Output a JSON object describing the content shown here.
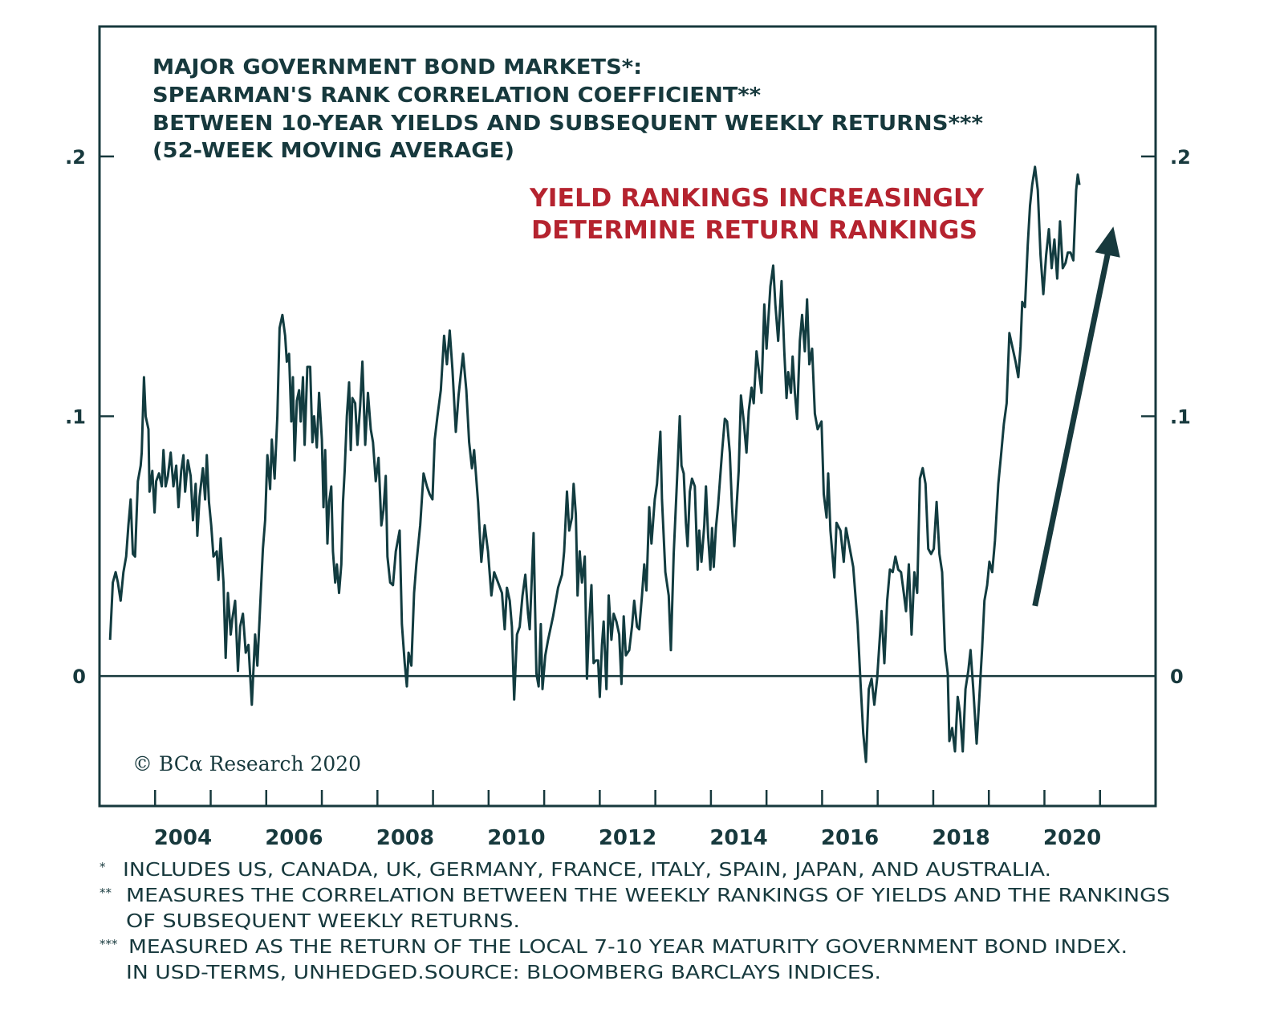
{
  "chart_data": {
    "type": "line",
    "title_lines": [
      "MAJOR GOVERNMENT BOND MARKETS*:",
      "SPEARMAN'S RANK CORRELATION COEFFICIENT**",
      "BETWEEN 10-YEAR YIELDS AND SUBSEQUENT WEEKLY RETURNS***",
      "(52-WEEK MOVING AVERAGE)"
    ],
    "annotation": {
      "lines": [
        "YIELD RANKINGS INCREASINGLY",
        "DETERMINE RETURN RANKINGS"
      ],
      "color": "#b5232f",
      "arrow": {
        "from": [
          2019.83,
          0.027
        ],
        "to": [
          2021.24,
          0.173
        ]
      }
    },
    "xlabel": "",
    "ylabel": "",
    "xlim": [
      2003,
      2022
    ],
    "ylim": [
      -0.05,
      0.25
    ],
    "x_ticks": [
      2004,
      2005,
      2006,
      2007,
      2008,
      2009,
      2010,
      2011,
      2012,
      2013,
      2014,
      2015,
      2016,
      2017,
      2018,
      2019,
      2020,
      2021
    ],
    "x_tick_labels": [
      "2004",
      "2006",
      "2008",
      "2010",
      "2012",
      "2014",
      "2016",
      "2018",
      "2020"
    ],
    "x_tick_label_positions": [
      2004.5,
      2006.5,
      2008.5,
      2010.5,
      2012.5,
      2014.5,
      2016.5,
      2018.5,
      2020.5
    ],
    "y_ticks": [
      0.1,
      0.2
    ],
    "y_tick_labels": [
      ".2",
      ".1",
      "0"
    ],
    "y_tick_label_values": [
      0.2,
      0.1,
      0
    ],
    "zero_line": 0,
    "grid": false,
    "line_color": "#123c40",
    "copyright": "© BCα Research 2020",
    "series": [
      {
        "name": "Spearman's rank correlation (52-week moving average)",
        "x": [
          2003.19,
          2003.24,
          2003.29,
          2003.33,
          2003.38,
          2003.43,
          2003.48,
          2003.52,
          2003.56,
          2003.6,
          2003.64,
          2003.69,
          2003.74,
          2003.76,
          2003.8,
          2003.83,
          2003.88,
          2003.9,
          2003.95,
          2003.99,
          2004.02,
          2004.07,
          2004.12,
          2004.15,
          2004.19,
          2004.23,
          2004.28,
          2004.33,
          2004.38,
          2004.42,
          2004.47,
          2004.51,
          2004.54,
          2004.59,
          2004.64,
          2004.68,
          2004.73,
          2004.76,
          2004.8,
          2004.86,
          2004.9,
          2004.93,
          2004.97,
          2005.01,
          2005.05,
          2005.11,
          2005.14,
          2005.18,
          2005.23,
          2005.27,
          2005.31,
          2005.36,
          2005.39,
          2005.44,
          2005.49,
          2005.53,
          2005.58,
          2005.63,
          2005.68,
          2005.74,
          2005.8,
          2005.84,
          2005.89,
          2005.94,
          2005.98,
          2006.02,
          2006.07,
          2006.1,
          2006.15,
          2006.2,
          2006.24,
          2006.29,
          2006.34,
          2006.37,
          2006.41,
          2006.45,
          2006.48,
          2006.51,
          2006.55,
          2006.59,
          2006.62,
          2006.66,
          2006.69,
          2006.74,
          2006.79,
          2006.83,
          2006.86,
          2006.91,
          2006.95,
          2007.0,
          2007.03,
          2007.06,
          2007.1,
          2007.13,
          2007.17,
          2007.2,
          2007.24,
          2007.27,
          2007.31,
          2007.35,
          2007.38,
          2007.41,
          2007.45,
          2007.49,
          2007.52,
          2007.55,
          2007.6,
          2007.64,
          2007.69,
          2007.73,
          2007.78,
          2007.83,
          2007.88,
          2007.92,
          2007.97,
          2008.02,
          2008.07,
          2008.11,
          2008.15,
          2008.18,
          2008.23,
          2008.28,
          2008.33,
          2008.4,
          2008.44,
          2008.49,
          2008.53,
          2008.56,
          2008.61,
          2008.66,
          2008.7,
          2008.77,
          2008.83,
          2008.89,
          2008.94,
          2008.99,
          2009.03,
          2009.08,
          2009.14,
          2009.2,
          2009.25,
          2009.3,
          2009.35,
          2009.41,
          2009.46,
          2009.54,
          2009.6,
          2009.65,
          2009.7,
          2009.74,
          2009.81,
          2009.87,
          2009.93,
          2009.99,
          2010.05,
          2010.1,
          2010.24,
          2010.29,
          2010.33,
          2010.38,
          2010.42,
          2010.46,
          2010.51,
          2010.56,
          2010.61,
          2010.66,
          2010.71,
          2010.74,
          2010.81,
          2010.86,
          2010.9,
          2010.94,
          2010.97,
          2011.02,
          2011.07,
          2011.16,
          2011.25,
          2011.32,
          2011.36,
          2011.41,
          2011.45,
          2011.5,
          2011.53,
          2011.57,
          2011.6,
          2011.64,
          2011.68,
          2011.73,
          2011.77,
          2011.81,
          2011.85,
          2011.89,
          2011.93,
          2011.97,
          2012.0,
          2012.04,
          2012.07,
          2012.12,
          2012.16,
          2012.21,
          2012.25,
          2012.3,
          2012.35,
          2012.39,
          2012.43,
          2012.47,
          2012.53,
          2012.58,
          2012.62,
          2012.67,
          2012.71,
          2012.76,
          2012.8,
          2012.84,
          2012.89,
          2012.93,
          2012.99,
          2013.03,
          2013.09,
          2013.12,
          2013.18,
          2013.24,
          2013.28,
          2013.33,
          2013.38,
          2013.44,
          2013.47,
          2013.51,
          2013.55,
          2013.58,
          2013.62,
          2013.66,
          2013.71,
          2013.76,
          2013.79,
          2013.83,
          2013.88,
          2013.91,
          2013.95,
          2013.99,
          2014.02,
          2014.05,
          2014.09,
          2014.13,
          2014.2,
          2014.25,
          2014.29,
          2014.34,
          2014.38,
          2014.42,
          2014.46,
          2014.5,
          2014.54,
          2014.59,
          2014.64,
          2014.68,
          2014.73,
          2014.77,
          2014.82,
          2014.87,
          2014.91,
          2014.96,
          2015.0,
          2015.07,
          2015.12,
          2015.16,
          2015.21,
          2015.27,
          2015.32,
          2015.36,
          2015.39,
          2015.44,
          2015.47,
          2015.51,
          2015.55,
          2015.6,
          2015.64,
          2015.69,
          2015.73,
          2015.77,
          2015.82,
          2015.87,
          2015.92,
          2015.99,
          2016.03,
          2016.08,
          2016.11,
          2016.15,
          2016.22,
          2016.26,
          2016.33,
          2016.39,
          2016.43,
          2016.49,
          2016.56,
          2016.64,
          2016.69,
          2016.74,
          2016.79,
          2016.84,
          2016.89,
          2016.94,
          2016.99,
          2017.07,
          2017.12,
          2017.17,
          2017.22,
          2017.27,
          2017.32,
          2017.37,
          2017.42,
          2017.47,
          2017.51,
          2017.56,
          2017.61,
          2017.66,
          2017.71,
          2017.76,
          2017.81,
          2017.86,
          2017.91,
          2017.96,
          2018.01,
          2018.06,
          2018.11,
          2018.16,
          2018.21,
          2018.26,
          2018.29,
          2018.34,
          2018.39,
          2018.44,
          2018.48,
          2018.53,
          2018.58,
          2018.63,
          2018.67,
          2018.72,
          2018.78,
          2018.83,
          2018.88,
          2018.92,
          2018.97,
          2019.01,
          2019.06,
          2019.11,
          2019.17,
          2019.22,
          2019.27,
          2019.32,
          2019.37,
          2019.42,
          2019.48,
          2019.53,
          2019.57,
          2019.6,
          2019.65,
          2019.7,
          2019.74,
          2019.78,
          2019.83,
          2019.88,
          2019.93,
          2019.98,
          2020.03,
          2020.08,
          2020.13,
          2020.18,
          2020.23,
          2020.28,
          2020.33,
          2020.38,
          2020.42,
          2020.47,
          2020.52,
          2020.57,
          2020.6,
          2020.63
        ],
        "y": [
          0.014,
          0.036,
          0.04,
          0.036,
          0.029,
          0.04,
          0.046,
          0.058,
          0.068,
          0.047,
          0.046,
          0.075,
          0.081,
          0.086,
          0.115,
          0.1,
          0.095,
          0.071,
          0.079,
          0.063,
          0.075,
          0.078,
          0.073,
          0.087,
          0.073,
          0.077,
          0.086,
          0.073,
          0.081,
          0.065,
          0.079,
          0.085,
          0.071,
          0.083,
          0.077,
          0.06,
          0.074,
          0.054,
          0.069,
          0.08,
          0.068,
          0.085,
          0.067,
          0.058,
          0.046,
          0.048,
          0.037,
          0.053,
          0.036,
          0.007,
          0.032,
          0.016,
          0.022,
          0.029,
          0.002,
          0.019,
          0.024,
          0.009,
          0.012,
          -0.011,
          0.016,
          0.004,
          0.027,
          0.049,
          0.06,
          0.085,
          0.072,
          0.091,
          0.076,
          0.1,
          0.134,
          0.139,
          0.131,
          0.121,
          0.124,
          0.098,
          0.115,
          0.083,
          0.106,
          0.11,
          0.098,
          0.115,
          0.089,
          0.119,
          0.119,
          0.09,
          0.1,
          0.088,
          0.109,
          0.091,
          0.065,
          0.087,
          0.051,
          0.067,
          0.073,
          0.048,
          0.036,
          0.043,
          0.032,
          0.043,
          0.067,
          0.079,
          0.1,
          0.113,
          0.087,
          0.107,
          0.105,
          0.089,
          0.104,
          0.121,
          0.089,
          0.109,
          0.095,
          0.09,
          0.075,
          0.084,
          0.058,
          0.064,
          0.077,
          0.046,
          0.036,
          0.035,
          0.048,
          0.056,
          0.02,
          0.005,
          -0.004,
          0.009,
          0.004,
          0.032,
          0.043,
          0.058,
          0.078,
          0.073,
          0.07,
          0.068,
          0.091,
          0.1,
          0.11,
          0.131,
          0.12,
          0.133,
          0.118,
          0.094,
          0.108,
          0.124,
          0.11,
          0.09,
          0.08,
          0.087,
          0.067,
          0.044,
          0.058,
          0.048,
          0.031,
          0.04,
          0.032,
          0.018,
          0.034,
          0.029,
          0.019,
          -0.009,
          0.016,
          0.019,
          0.031,
          0.039,
          0.024,
          0.018,
          0.055,
          0.001,
          -0.004,
          0.02,
          -0.005,
          0.008,
          0.014,
          0.023,
          0.034,
          0.039,
          0.048,
          0.071,
          0.056,
          0.061,
          0.074,
          0.062,
          0.031,
          0.048,
          0.036,
          0.046,
          -0.001,
          0.021,
          0.035,
          0.005,
          0.006,
          0.006,
          -0.008,
          0.012,
          0.021,
          -0.005,
          0.031,
          0.014,
          0.024,
          0.021,
          0.016,
          -0.003,
          0.023,
          0.008,
          0.01,
          0.019,
          0.029,
          0.019,
          0.018,
          0.031,
          0.043,
          0.033,
          0.065,
          0.051,
          0.068,
          0.074,
          0.094,
          0.068,
          0.04,
          0.031,
          0.01,
          0.047,
          0.071,
          0.1,
          0.081,
          0.078,
          0.059,
          0.05,
          0.071,
          0.076,
          0.073,
          0.041,
          0.056,
          0.044,
          0.058,
          0.073,
          0.054,
          0.041,
          0.057,
          0.042,
          0.057,
          0.066,
          0.086,
          0.099,
          0.098,
          0.086,
          0.065,
          0.05,
          0.065,
          0.079,
          0.108,
          0.098,
          0.086,
          0.102,
          0.111,
          0.105,
          0.125,
          0.116,
          0.109,
          0.143,
          0.126,
          0.15,
          0.158,
          0.143,
          0.129,
          0.152,
          0.125,
          0.107,
          0.117,
          0.109,
          0.123,
          0.109,
          0.099,
          0.129,
          0.139,
          0.125,
          0.145,
          0.12,
          0.126,
          0.101,
          0.095,
          0.098,
          0.07,
          0.061,
          0.078,
          0.056,
          0.038,
          0.059,
          0.056,
          0.044,
          0.057,
          0.05,
          0.042,
          0.02,
          -0.002,
          -0.022,
          -0.033,
          -0.005,
          -0.001,
          -0.011,
          -0.001,
          0.025,
          0.005,
          0.029,
          0.041,
          0.04,
          0.046,
          0.041,
          0.04,
          0.032,
          0.025,
          0.043,
          0.016,
          0.04,
          0.032,
          0.076,
          0.08,
          0.074,
          0.049,
          0.047,
          0.049,
          0.067,
          0.047,
          0.04,
          0.01,
          0.001,
          -0.025,
          -0.02,
          -0.029,
          -0.008,
          -0.014,
          -0.029,
          -0.005,
          0.002,
          0.01,
          -0.005,
          -0.026,
          -0.008,
          0.011,
          0.029,
          0.035,
          0.044,
          0.04,
          0.052,
          0.074,
          0.085,
          0.097,
          0.105,
          0.132,
          0.127,
          0.121,
          0.115,
          0.127,
          0.144,
          0.142,
          0.166,
          0.181,
          0.189,
          0.196,
          0.187,
          0.162,
          0.147,
          0.162,
          0.172,
          0.157,
          0.168,
          0.153,
          0.175,
          0.157,
          0.159,
          0.163,
          0.163,
          0.16,
          0.187,
          0.193,
          0.189
        ]
      }
    ]
  },
  "footnotes": [
    {
      "marker": "*",
      "lines": [
        "INCLUDES US, CANADA, UK, GERMANY, FRANCE, ITALY, SPAIN, JAPAN, AND AUSTRALIA."
      ]
    },
    {
      "marker": "**",
      "lines": [
        "MEASURES THE CORRELATION BETWEEN THE WEEKLY RANKINGS OF YIELDS AND THE RANKINGS",
        "OF SUBSEQUENT WEEKLY RETURNS."
      ]
    },
    {
      "marker": "***",
      "lines": [
        "MEASURED AS THE RETURN OF THE LOCAL 7-10 YEAR MATURITY GOVERNMENT BOND INDEX.",
        "IN USD-TERMS, UNHEDGED.SOURCE: BLOOMBERG BARCLAYS INDICES."
      ]
    }
  ]
}
